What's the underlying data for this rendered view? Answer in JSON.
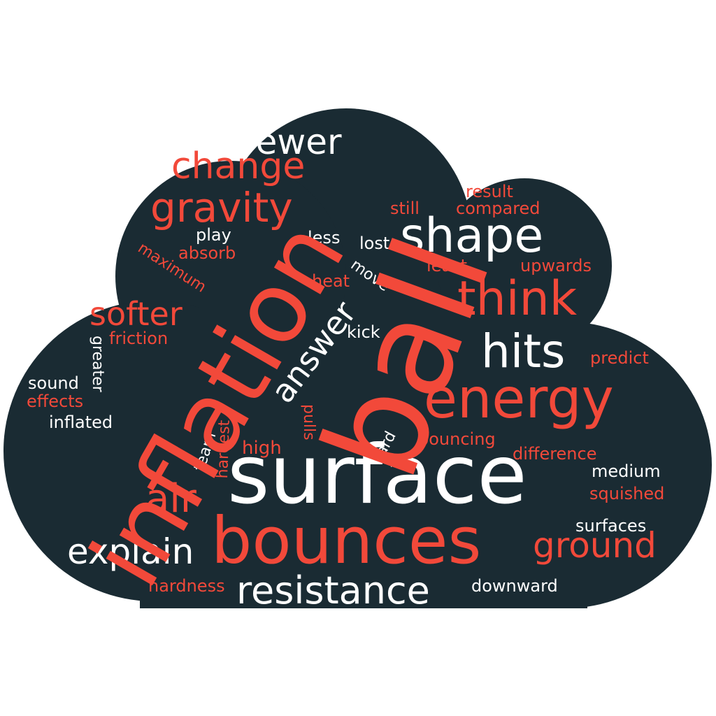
{
  "colors": {
    "background": "#ffffff",
    "cloud": "#1a2b33",
    "accent": "#f2493a",
    "white": "#ffffff"
  },
  "words": {
    "fewer": "fewer",
    "change": "change",
    "gravity": "gravity",
    "inflation": "inflation",
    "ball": "ball",
    "result": "result",
    "still": "still",
    "compared": "compared",
    "shape": "shape",
    "play": "play",
    "less": "less",
    "lost": "lost",
    "maximum": "maximum",
    "absorb": "absorb",
    "least": "least",
    "upwards": "upwards",
    "move": "move",
    "heat": "heat",
    "softer": "softer",
    "think": "think",
    "answer": "answer",
    "friction": "friction",
    "greater": "greater",
    "kick": "kick",
    "hits": "hits",
    "predict": "predict",
    "sound": "sound",
    "effects": "effects",
    "energy": "energy",
    "inflated": "inflated",
    "hardest": "hardest",
    "pulls": "pulls",
    "team": "team",
    "hard": "hard",
    "high": "high",
    "bouncing": "bouncing",
    "difference": "difference",
    "medium": "medium",
    "squished": "squished",
    "air": "air",
    "surface": "surface",
    "surfaces": "surfaces",
    "explain": "explain",
    "bounces": "bounces",
    "ground": "ground",
    "hardness": "hardness",
    "resistance": "resistance",
    "downward": "downward"
  }
}
